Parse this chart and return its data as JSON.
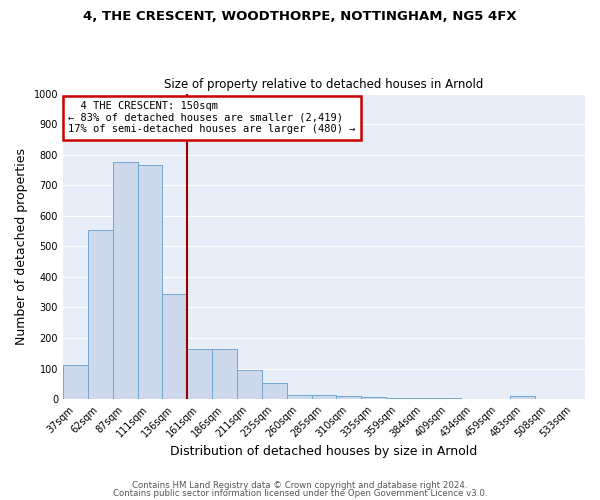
{
  "title1": "4, THE CRESCENT, WOODTHORPE, NOTTINGHAM, NG5 4FX",
  "title2": "Size of property relative to detached houses in Arnold",
  "xlabel": "Distribution of detached houses by size in Arnold",
  "ylabel": "Number of detached properties",
  "bar_labels": [
    "37sqm",
    "62sqm",
    "87sqm",
    "111sqm",
    "136sqm",
    "161sqm",
    "186sqm",
    "211sqm",
    "235sqm",
    "260sqm",
    "285sqm",
    "310sqm",
    "335sqm",
    "359sqm",
    "384sqm",
    "409sqm",
    "434sqm",
    "459sqm",
    "483sqm",
    "508sqm",
    "533sqm"
  ],
  "bar_heights": [
    113,
    555,
    775,
    765,
    345,
    163,
    163,
    95,
    52,
    15,
    14,
    10,
    6,
    5,
    5,
    5,
    0,
    0,
    10,
    0,
    0
  ],
  "bar_color": "#cdd9ea",
  "bar_edge_color": "#6fa8d4",
  "vline_color": "#990000",
  "annotation_title": "4 THE CRESCENT: 150sqm",
  "annotation_line1": "← 83% of detached houses are smaller (2,419)",
  "annotation_line2": "17% of semi-detached houses are larger (480) →",
  "annotation_box_facecolor": "#ffffff",
  "annotation_box_edgecolor": "#cc0000",
  "ylim": [
    0,
    1000
  ],
  "yticks": [
    0,
    100,
    200,
    300,
    400,
    500,
    600,
    700,
    800,
    900,
    1000
  ],
  "footer1": "Contains HM Land Registry data © Crown copyright and database right 2024.",
  "footer2": "Contains public sector information licensed under the Open Government Licence v3.0.",
  "plot_bg_color": "#e8eef7",
  "fig_bg_color": "#ffffff",
  "grid_color": "#ffffff"
}
